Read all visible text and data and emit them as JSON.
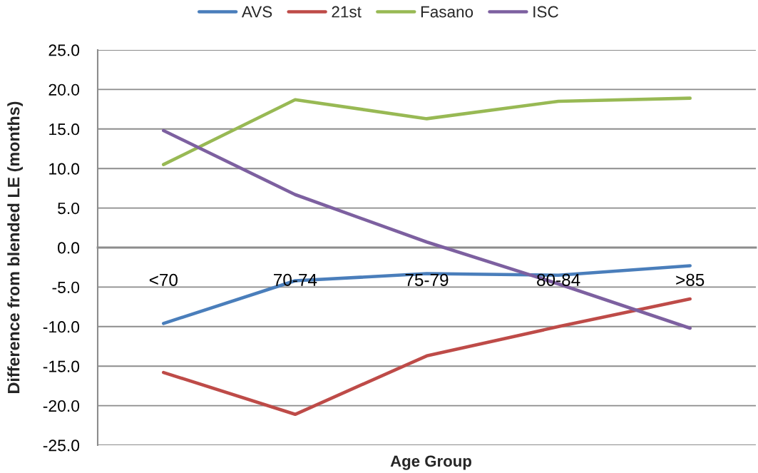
{
  "chart_data": {
    "type": "line",
    "xlabel": "Age Group",
    "ylabel": "Difference from blended LE (months)",
    "categories": [
      "<70",
      "70-74",
      "75-79",
      "80-84",
      ">85"
    ],
    "series": [
      {
        "name": "AVS",
        "color": "#4a7ebb",
        "values": [
          -9.6,
          -4.2,
          -3.3,
          -3.5,
          -2.3
        ]
      },
      {
        "name": "21st",
        "color": "#be4b48",
        "values": [
          -15.8,
          -21.1,
          -13.7,
          -10.0,
          -6.5
        ]
      },
      {
        "name": "Fasano",
        "color": "#98b954",
        "values": [
          10.5,
          18.7,
          16.3,
          18.5,
          18.9
        ]
      },
      {
        "name": "ISC",
        "color": "#7d60a0",
        "values": [
          14.8,
          6.7,
          0.7,
          -4.6,
          -10.2
        ]
      }
    ],
    "ylim": [
      -25,
      25
    ],
    "yticks": [
      {
        "value": -25,
        "label": "-25.0"
      },
      {
        "value": -20,
        "label": "-20.0"
      },
      {
        "value": -15,
        "label": "-15.0"
      },
      {
        "value": -10,
        "label": "-10.0"
      },
      {
        "value": -5,
        "label": "-5.0"
      },
      {
        "value": 0,
        "label": "0.0"
      },
      {
        "value": 5,
        "label": "5.0"
      },
      {
        "value": 10,
        "label": "10.0"
      },
      {
        "value": 15,
        "label": "15.0"
      },
      {
        "value": 20,
        "label": "20.0"
      },
      {
        "value": 25,
        "label": "25.0"
      }
    ],
    "grid": "y",
    "legend": "top",
    "line_style": "solid"
  }
}
